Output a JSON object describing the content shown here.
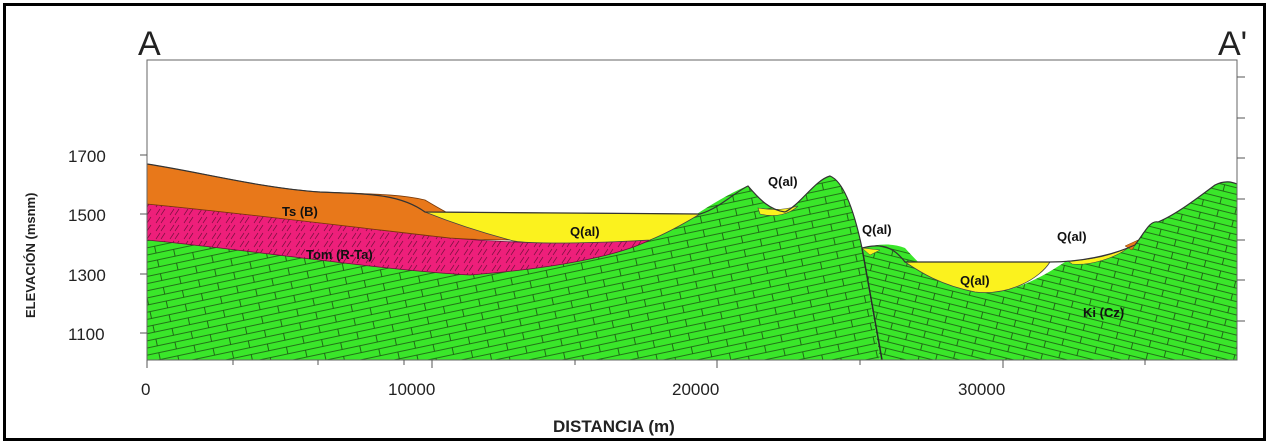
{
  "section": {
    "start_label": "A",
    "end_label": "A'"
  },
  "axes": {
    "x_label": "DISTANCIA (m)",
    "y_label": "ELEVACIÓN (msnm)",
    "x_ticks": [
      "0",
      "10000",
      "20000",
      "30000"
    ],
    "y_ticks": [
      "1700",
      "1500",
      "1300",
      "1100"
    ]
  },
  "units": {
    "ts": "Ts (B)",
    "tom": "Tom (R-Ta)",
    "qal_1": "Q(al)",
    "qal_2": "Q(al)",
    "qal_3": "Q(al)",
    "qal_4": "Q(al)",
    "qal_5": "Q(al)",
    "ki": "Ki (Cz)"
  },
  "colors": {
    "ts": "#e8781a",
    "tom": "#ee1f7a",
    "qal": "#fbf21e",
    "ki": "#3ae62a",
    "frame": "#000000"
  }
}
